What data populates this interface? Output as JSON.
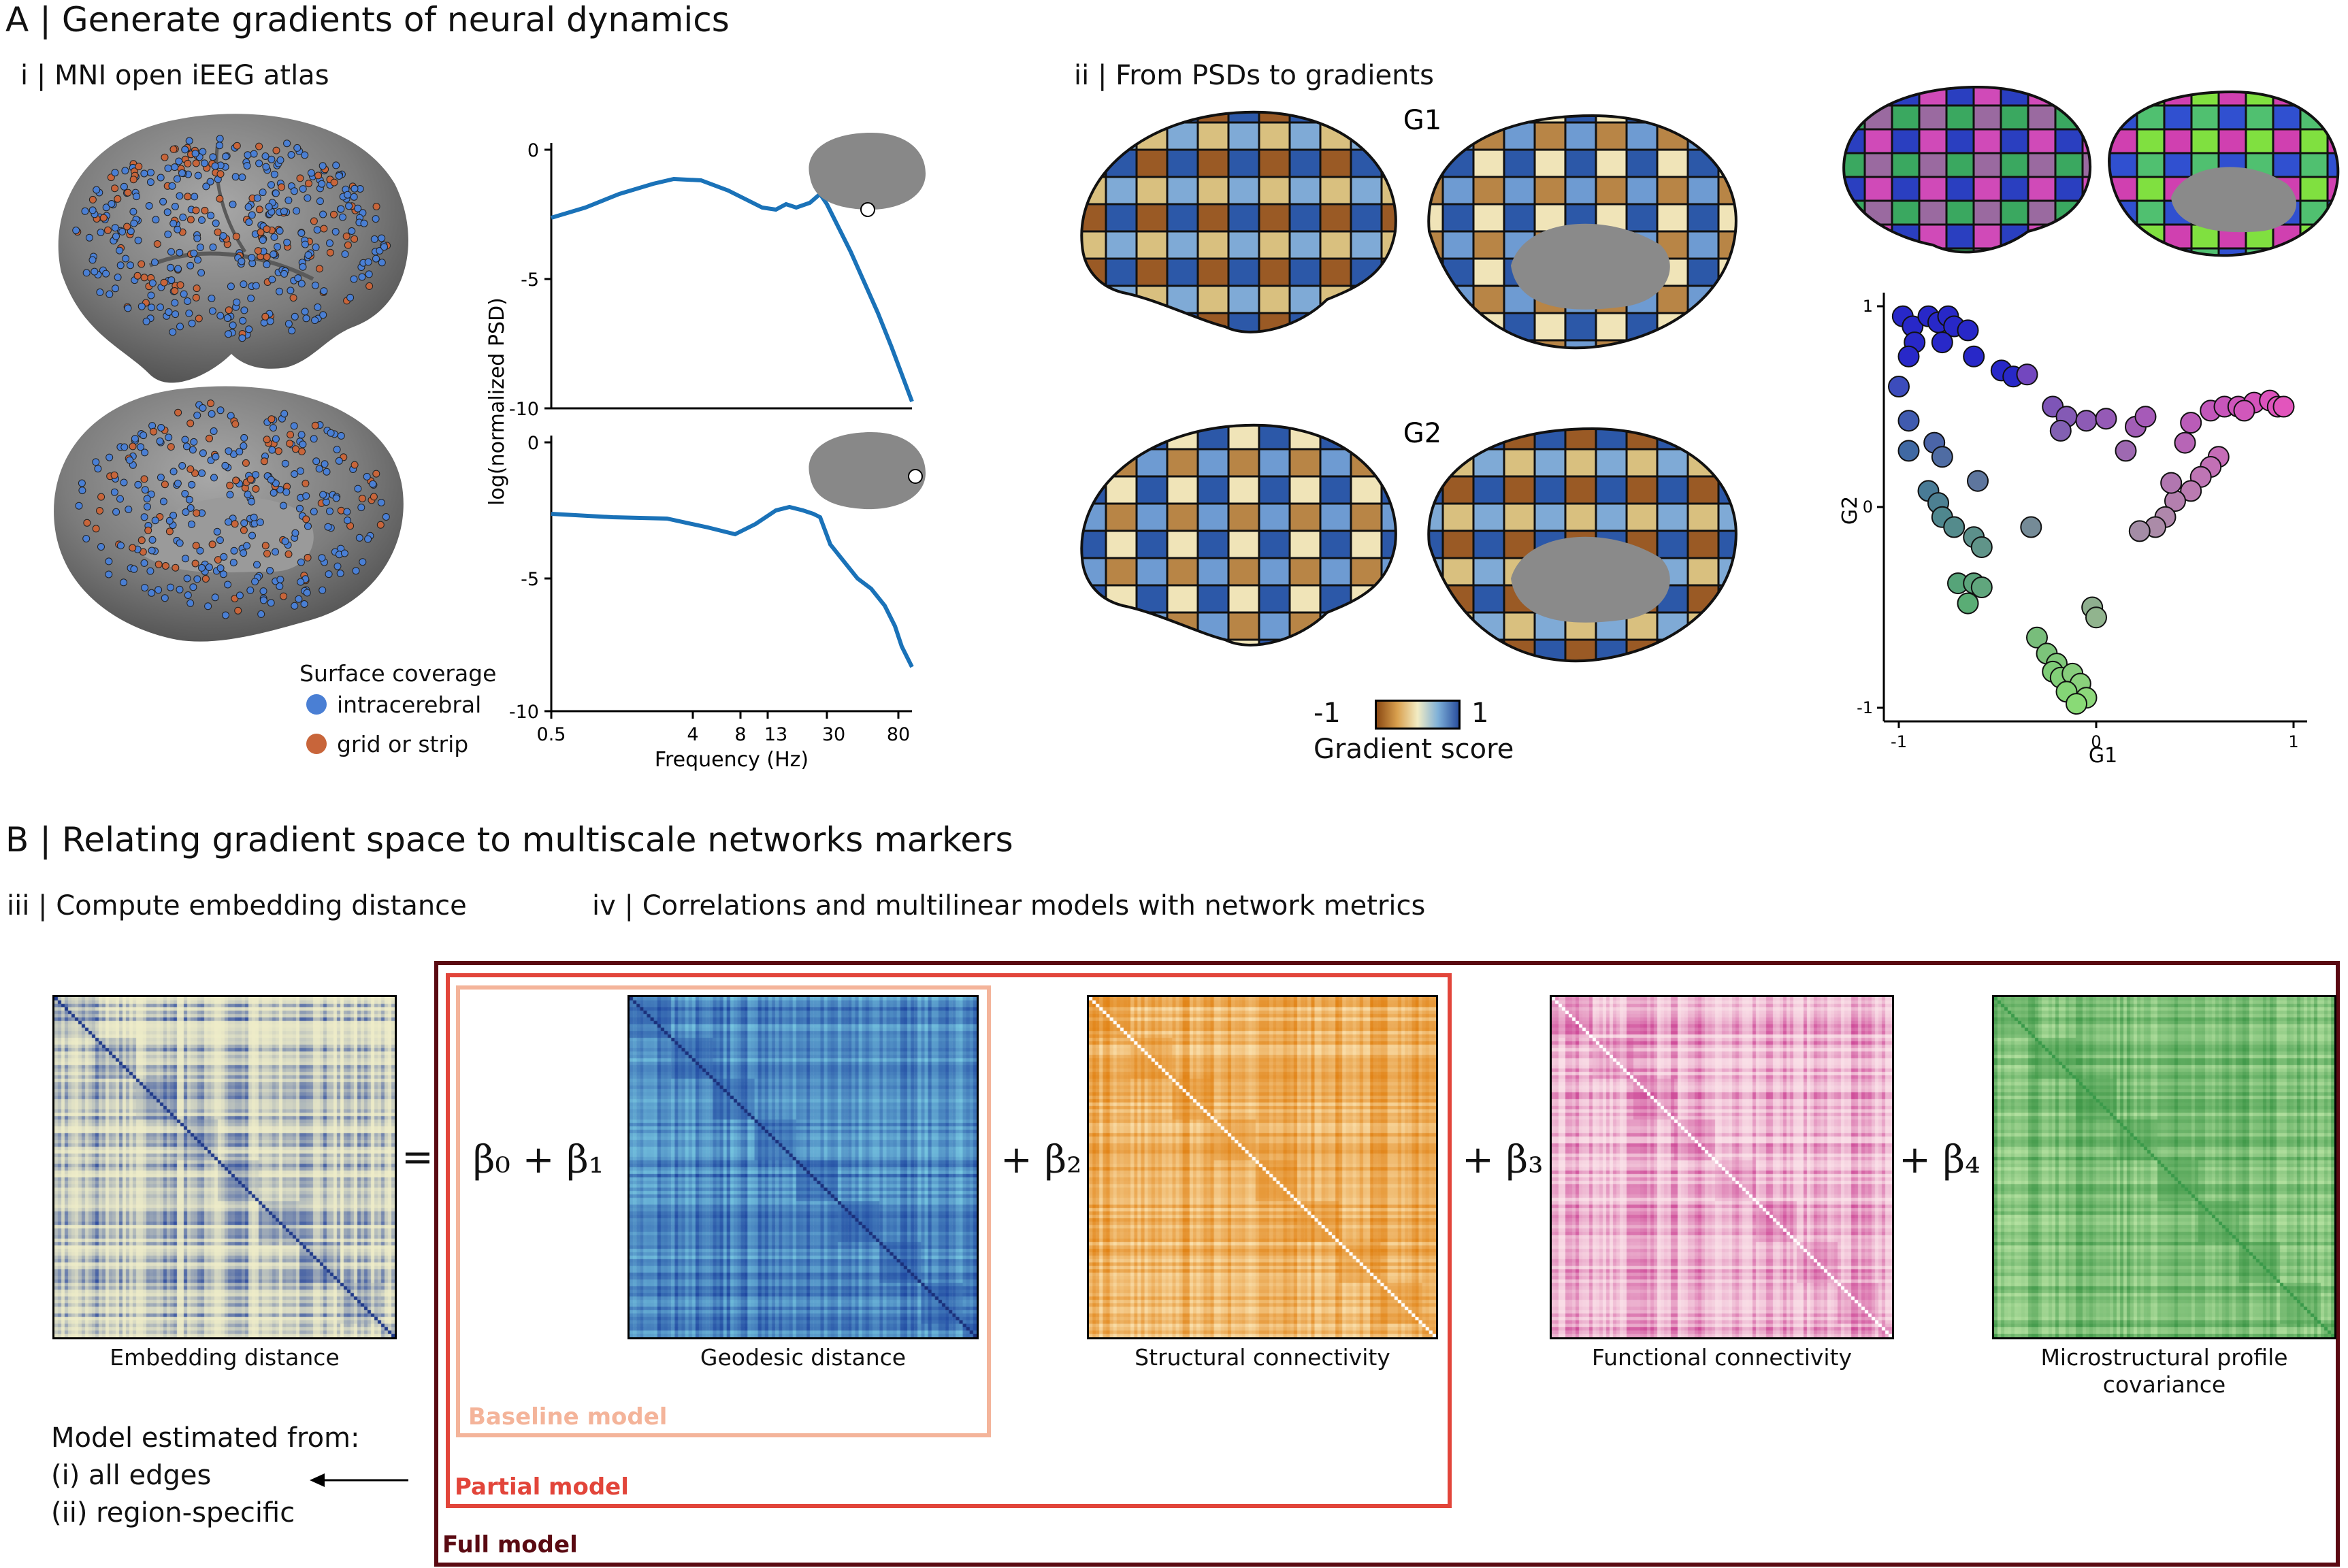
{
  "panelA": {
    "title": "A | Generate gradients of neural dynamics",
    "sub_i": "i | MNI open iEEG atlas",
    "sub_ii": "ii | From PSDs to gradients",
    "legend": {
      "title": "Surface coverage",
      "items": [
        {
          "label": "intracerebral",
          "color": "#4a7fd4"
        },
        {
          "label": "grid or strip",
          "color": "#c8653a"
        }
      ]
    },
    "psd": {
      "ylabel": "log(normalized PSD)",
      "xlabel": "Frequency (Hz)",
      "xticks": [
        "0.5",
        "4",
        "8",
        "13",
        "30",
        "80"
      ],
      "top_yticks": [
        "0",
        "-5",
        "-10"
      ],
      "bottom_yticks": [
        "0",
        "-5",
        "-10"
      ],
      "line_color": "#1a72b8"
    },
    "g1_label": "G1",
    "g2_label": "G2",
    "colorbar": {
      "min": "-1",
      "max": "1",
      "label": "Gradient score"
    },
    "scatter": {
      "xlabel": "G1",
      "ylabel": "G2",
      "xticks": [
        "-1",
        "0",
        "1"
      ],
      "yticks": [
        "1",
        "0",
        "-1"
      ]
    }
  },
  "panelB": {
    "title": "B | Relating gradient space to multiscale networks markers",
    "sub_iii": "iii | Compute embedding distance",
    "sub_iv": "iv | Correlations and multilinear models with network metrics",
    "equals": "=",
    "terms": {
      "b0": "β₀  +  β₁",
      "b2": "+ β₂",
      "b3": "+ β₃",
      "b4": "+ β₄"
    },
    "captions": {
      "embedding": "Embedding distance",
      "geodesic": "Geodesic distance",
      "structural": "Structural connectivity",
      "functional": "Functional connectivity",
      "micro1": "Microstructural profile",
      "micro2": "covariance"
    },
    "models": {
      "baseline": "Baseline model",
      "partial": "Partial model",
      "full": "Full model"
    },
    "estimated": {
      "title": "Model estimated from:",
      "item1": "(i) all edges",
      "item2": "(ii) region-specific"
    }
  },
  "chart_data": {
    "type": "scatter",
    "xlabel": "G1",
    "ylabel": "G2",
    "xlim": [
      -1,
      1
    ],
    "ylim": [
      -1,
      1
    ],
    "points": [
      {
        "x": -0.98,
        "y": 0.95
      },
      {
        "x": -0.93,
        "y": 0.9
      },
      {
        "x": -0.85,
        "y": 0.95
      },
      {
        "x": -0.8,
        "y": 0.92
      },
      {
        "x": -0.75,
        "y": 0.95
      },
      {
        "x": -0.72,
        "y": 0.9
      },
      {
        "x": -0.65,
        "y": 0.88
      },
      {
        "x": -0.62,
        "y": 0.75
      },
      {
        "x": -0.78,
        "y": 0.82
      },
      {
        "x": -0.92,
        "y": 0.82
      },
      {
        "x": -0.95,
        "y": 0.75
      },
      {
        "x": -1.0,
        "y": 0.6
      },
      {
        "x": -0.48,
        "y": 0.68
      },
      {
        "x": -0.42,
        "y": 0.65
      },
      {
        "x": -0.35,
        "y": 0.66
      },
      {
        "x": -0.22,
        "y": 0.5
      },
      {
        "x": -0.15,
        "y": 0.45
      },
      {
        "x": -0.05,
        "y": 0.43
      },
      {
        "x": 0.05,
        "y": 0.44
      },
      {
        "x": 0.2,
        "y": 0.4
      },
      {
        "x": 0.25,
        "y": 0.45
      },
      {
        "x": -0.18,
        "y": 0.38
      },
      {
        "x": 0.15,
        "y": 0.28
      },
      {
        "x": 0.58,
        "y": 0.48
      },
      {
        "x": 0.65,
        "y": 0.5
      },
      {
        "x": 0.72,
        "y": 0.5
      },
      {
        "x": 0.8,
        "y": 0.52
      },
      {
        "x": 0.88,
        "y": 0.53
      },
      {
        "x": 0.92,
        "y": 0.5
      },
      {
        "x": 0.95,
        "y": 0.5
      },
      {
        "x": 0.75,
        "y": 0.48
      },
      {
        "x": 0.48,
        "y": 0.42
      },
      {
        "x": 0.45,
        "y": 0.32
      },
      {
        "x": 0.62,
        "y": 0.25
      },
      {
        "x": 0.58,
        "y": 0.2
      },
      {
        "x": 0.53,
        "y": 0.15
      },
      {
        "x": 0.48,
        "y": 0.08
      },
      {
        "x": 0.4,
        "y": 0.03
      },
      {
        "x": 0.35,
        "y": -0.05
      },
      {
        "x": 0.3,
        "y": -0.1
      },
      {
        "x": 0.22,
        "y": -0.12
      },
      {
        "x": 0.38,
        "y": 0.12
      },
      {
        "x": -0.95,
        "y": 0.43
      },
      {
        "x": -0.95,
        "y": 0.28
      },
      {
        "x": -0.82,
        "y": 0.32
      },
      {
        "x": -0.78,
        "y": 0.25
      },
      {
        "x": -0.6,
        "y": 0.13
      },
      {
        "x": -0.85,
        "y": 0.08
      },
      {
        "x": -0.8,
        "y": 0.02
      },
      {
        "x": -0.78,
        "y": -0.05
      },
      {
        "x": -0.72,
        "y": -0.1
      },
      {
        "x": -0.62,
        "y": -0.15
      },
      {
        "x": -0.58,
        "y": -0.2
      },
      {
        "x": -0.33,
        "y": -0.1
      },
      {
        "x": -0.7,
        "y": -0.38
      },
      {
        "x": -0.62,
        "y": -0.38
      },
      {
        "x": -0.58,
        "y": -0.4
      },
      {
        "x": -0.65,
        "y": -0.48
      },
      {
        "x": -0.3,
        "y": -0.65
      },
      {
        "x": -0.25,
        "y": -0.73
      },
      {
        "x": -0.2,
        "y": -0.78
      },
      {
        "x": -0.22,
        "y": -0.82
      },
      {
        "x": -0.18,
        "y": -0.85
      },
      {
        "x": -0.12,
        "y": -0.83
      },
      {
        "x": -0.08,
        "y": -0.88
      },
      {
        "x": -0.15,
        "y": -0.92
      },
      {
        "x": -0.05,
        "y": -0.95
      },
      {
        "x": -0.1,
        "y": -0.98
      },
      {
        "x": -0.02,
        "y": -0.5
      },
      {
        "x": 0.0,
        "y": -0.55
      }
    ]
  }
}
